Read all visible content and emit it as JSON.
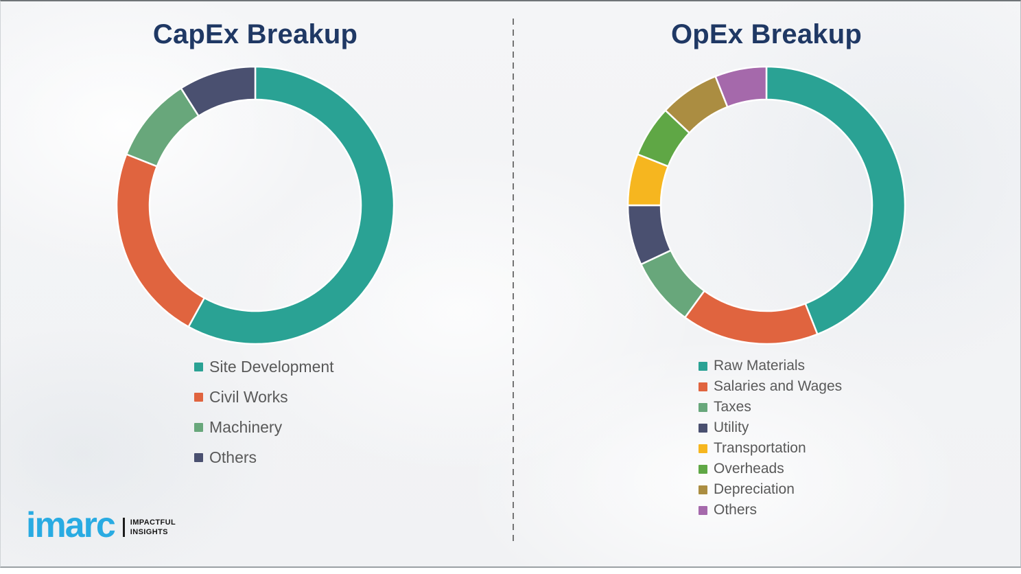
{
  "colors": {
    "title_text": "#1F3864",
    "legend_text": "#595959",
    "logo_blue": "#29ABE2",
    "divider_gray": "#737373",
    "background": "#F2F3F5"
  },
  "branding": {
    "logo_word": "imarc",
    "tagline_line1": "Impactful",
    "tagline_line2": "Insights"
  },
  "chart_data": [
    {
      "type": "pie",
      "subtype": "donut",
      "title": "CapEx Breakup",
      "legend_position": "below-left",
      "start_angle_deg": 0,
      "direction": "clockwise",
      "series": [
        {
          "name": "Site Development",
          "value": 58,
          "color": "#2AA294"
        },
        {
          "name": "Civil Works",
          "value": 23,
          "color": "#E0643F"
        },
        {
          "name": "Machinery",
          "value": 10,
          "color": "#68A77B"
        },
        {
          "name": "Others",
          "value": 9,
          "color": "#4A5070"
        }
      ],
      "values_note": "percent share estimated from arc angles"
    },
    {
      "type": "pie",
      "subtype": "donut",
      "title": "OpEx Breakup",
      "legend_position": "below-left",
      "start_angle_deg": 0,
      "direction": "clockwise",
      "series": [
        {
          "name": "Raw Materials",
          "value": 44,
          "color": "#2AA294"
        },
        {
          "name": "Salaries and Wages",
          "value": 16,
          "color": "#E0643F"
        },
        {
          "name": "Taxes",
          "value": 8,
          "color": "#68A77B"
        },
        {
          "name": "Utility",
          "value": 7,
          "color": "#4A5070"
        },
        {
          "name": "Transportation",
          "value": 6,
          "color": "#F6B61F"
        },
        {
          "name": "Overheads",
          "value": 6,
          "color": "#5FA745"
        },
        {
          "name": "Depreciation",
          "value": 7,
          "color": "#AB8D41"
        },
        {
          "name": "Others",
          "value": 6,
          "color": "#A569AB"
        }
      ],
      "values_note": "percent share estimated from arc angles"
    }
  ]
}
